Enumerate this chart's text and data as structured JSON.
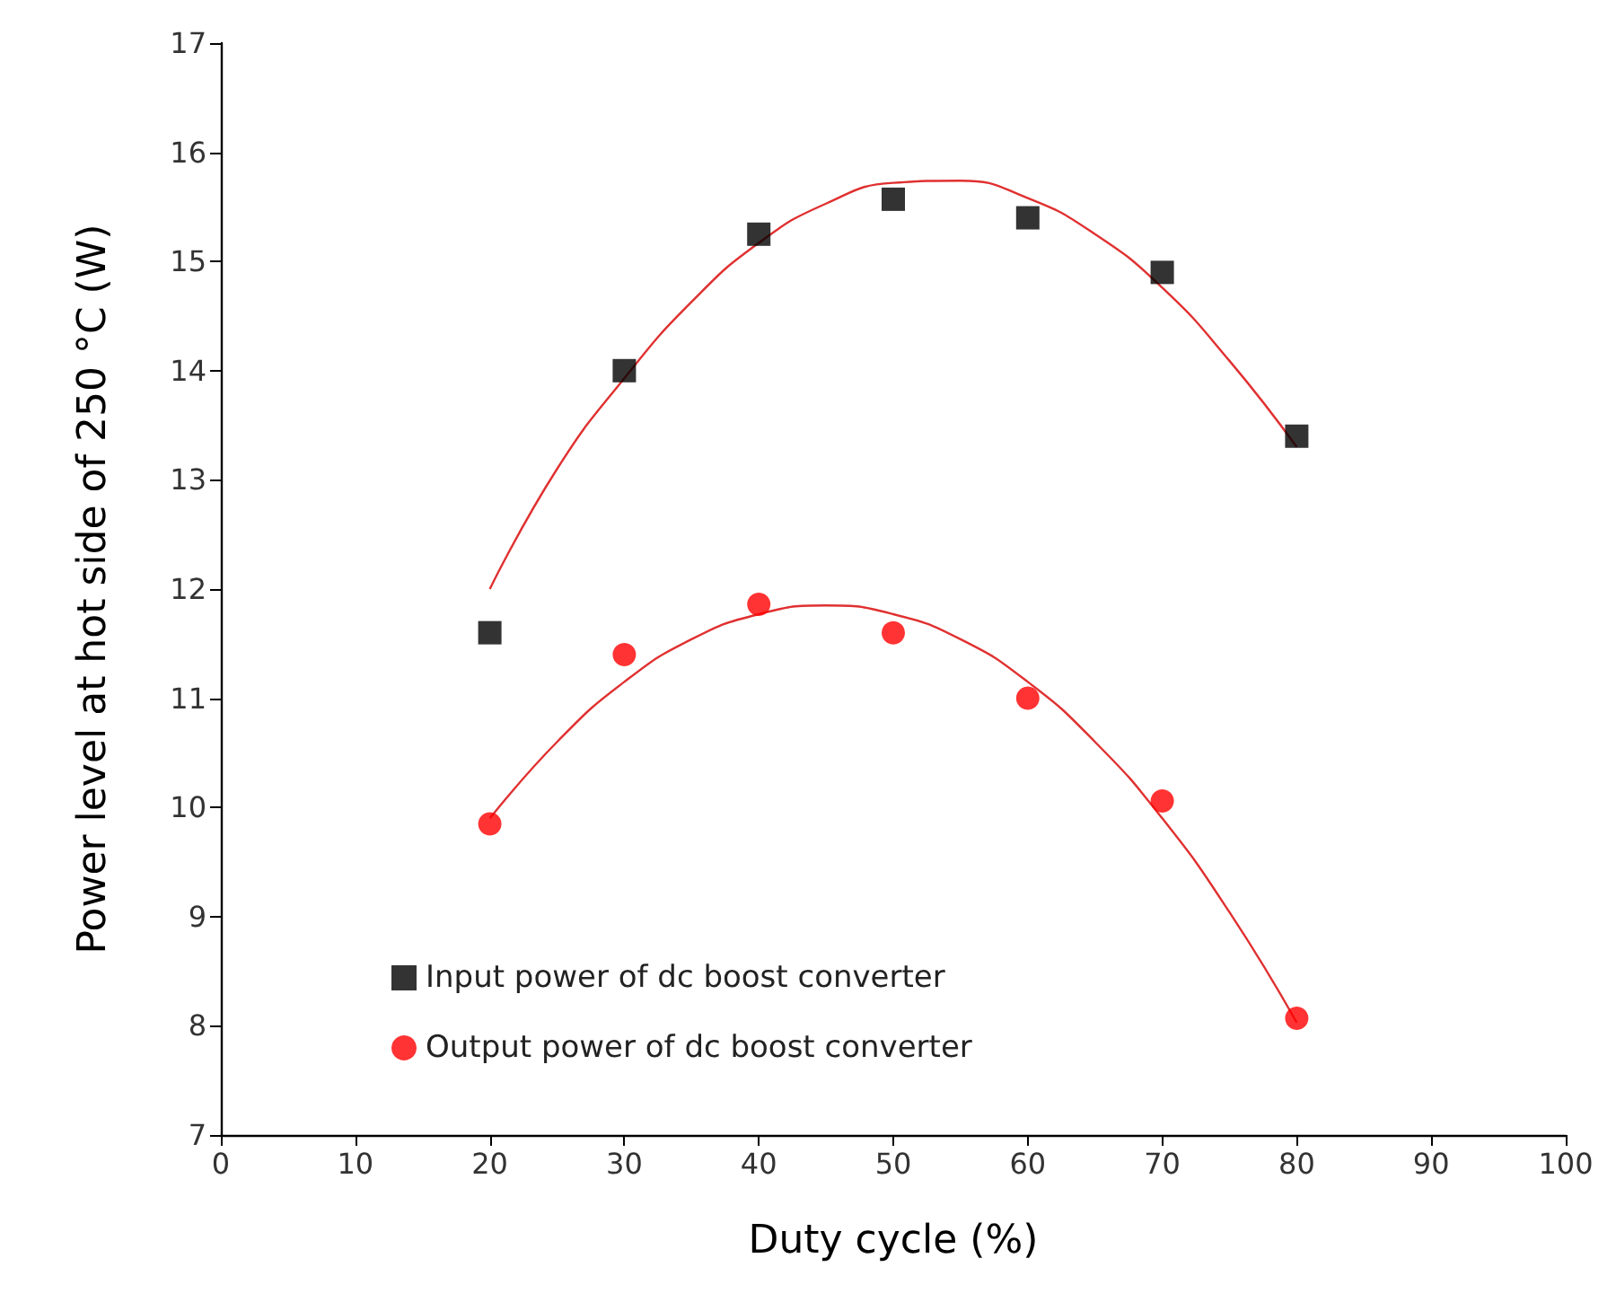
{
  "chart_data": {
    "type": "scatter",
    "xlabel": "Duty cycle (%)",
    "ylabel": "Power level at hot side of 250 °C (W)",
    "xlim": [
      0,
      100
    ],
    "ylim": [
      7,
      17
    ],
    "xticks": [
      0,
      10,
      20,
      30,
      40,
      50,
      60,
      70,
      80,
      90,
      100
    ],
    "yticks": [
      7,
      8,
      9,
      10,
      11,
      12,
      13,
      14,
      15,
      16,
      17
    ],
    "grid": false,
    "legend": "bottom left",
    "series": [
      {
        "name": "Input power of dc boost converter",
        "color": "#000000",
        "marker": "square",
        "x": [
          20,
          30,
          40,
          50,
          60,
          70,
          80
        ],
        "values": [
          11.6,
          14.0,
          15.25,
          15.57,
          15.4,
          14.9,
          13.4
        ]
      },
      {
        "name": "Output power of dc boost converter",
        "color": "#ff0000",
        "marker": "circle",
        "x": [
          20,
          30,
          40,
          50,
          60,
          70,
          80
        ],
        "values": [
          9.85,
          11.4,
          11.86,
          11.6,
          11.0,
          10.06,
          8.07
        ]
      },
      {
        "type": "line",
        "color": "#e03030",
        "x": [
          20,
          25,
          30,
          35,
          40,
          45,
          50,
          55,
          60,
          65,
          70,
          75,
          80
        ],
        "values": [
          12.0,
          13.1,
          13.93,
          14.63,
          15.17,
          15.53,
          15.72,
          15.74,
          15.58,
          15.25,
          14.76,
          14.09,
          13.3
        ]
      },
      {
        "type": "line",
        "color": "#e03030",
        "x": [
          20,
          25,
          30,
          35,
          40,
          45,
          50,
          55,
          60,
          65,
          70,
          75,
          80
        ],
        "values": [
          9.9,
          10.6,
          11.15,
          11.54,
          11.77,
          11.85,
          11.77,
          11.54,
          11.15,
          10.6,
          9.9,
          9.04,
          8.03
        ]
      }
    ]
  }
}
